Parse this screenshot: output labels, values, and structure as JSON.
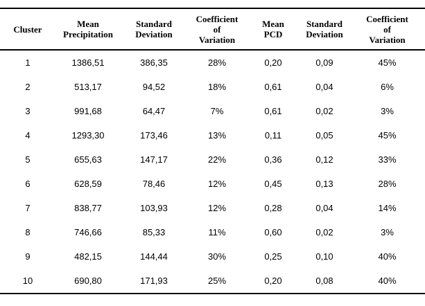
{
  "table": {
    "description": "Cluster statistics table: precipitation and PCD summary per cluster",
    "headers": [
      {
        "id": "cluster",
        "lines": [
          "Cluster"
        ]
      },
      {
        "id": "mean-precipitation",
        "lines": [
          "Mean",
          "Precipitation"
        ]
      },
      {
        "id": "standard-deviation-precip",
        "lines": [
          "Standard",
          "Deviation"
        ]
      },
      {
        "id": "coefficient-of-variation-precip",
        "lines": [
          "Coefficient",
          "of",
          "Variation"
        ]
      },
      {
        "id": "mean-pcd",
        "lines": [
          "Mean",
          "PCD"
        ]
      },
      {
        "id": "standard-deviation-pcd",
        "lines": [
          "Standard",
          "Deviation"
        ]
      },
      {
        "id": "coefficient-of-variation-pcd",
        "lines": [
          "Coefficient",
          "of",
          "Variation"
        ]
      }
    ],
    "rows": [
      [
        "1",
        "1386,51",
        "386,35",
        "28%",
        "0,20",
        "0,09",
        "45%"
      ],
      [
        "2",
        "513,17",
        "94,52",
        "18%",
        "0,61",
        "0,04",
        "6%"
      ],
      [
        "3",
        "991,68",
        "64,47",
        "7%",
        "0,61",
        "0,02",
        "3%"
      ],
      [
        "4",
        "1293,30",
        "173,46",
        "13%",
        "0,11",
        "0,05",
        "45%"
      ],
      [
        "5",
        "655,63",
        "147,17",
        "22%",
        "0,36",
        "0,12",
        "33%"
      ],
      [
        "6",
        "628,59",
        "78,46",
        "12%",
        "0,45",
        "0,13",
        "28%"
      ],
      [
        "7",
        "838,77",
        "103,93",
        "12%",
        "0,28",
        "0,04",
        "14%"
      ],
      [
        "8",
        "746,66",
        "85,33",
        "11%",
        "0,60",
        "0,02",
        "3%"
      ],
      [
        "9",
        "482,15",
        "144,44",
        "30%",
        "0,25",
        "0,10",
        "40%"
      ],
      [
        "10",
        "690,80",
        "171,93",
        "25%",
        "0,20",
        "0,08",
        "40%"
      ]
    ],
    "colors": {
      "text": "#000000",
      "background": "#ffffff",
      "rule": "#000000"
    }
  }
}
